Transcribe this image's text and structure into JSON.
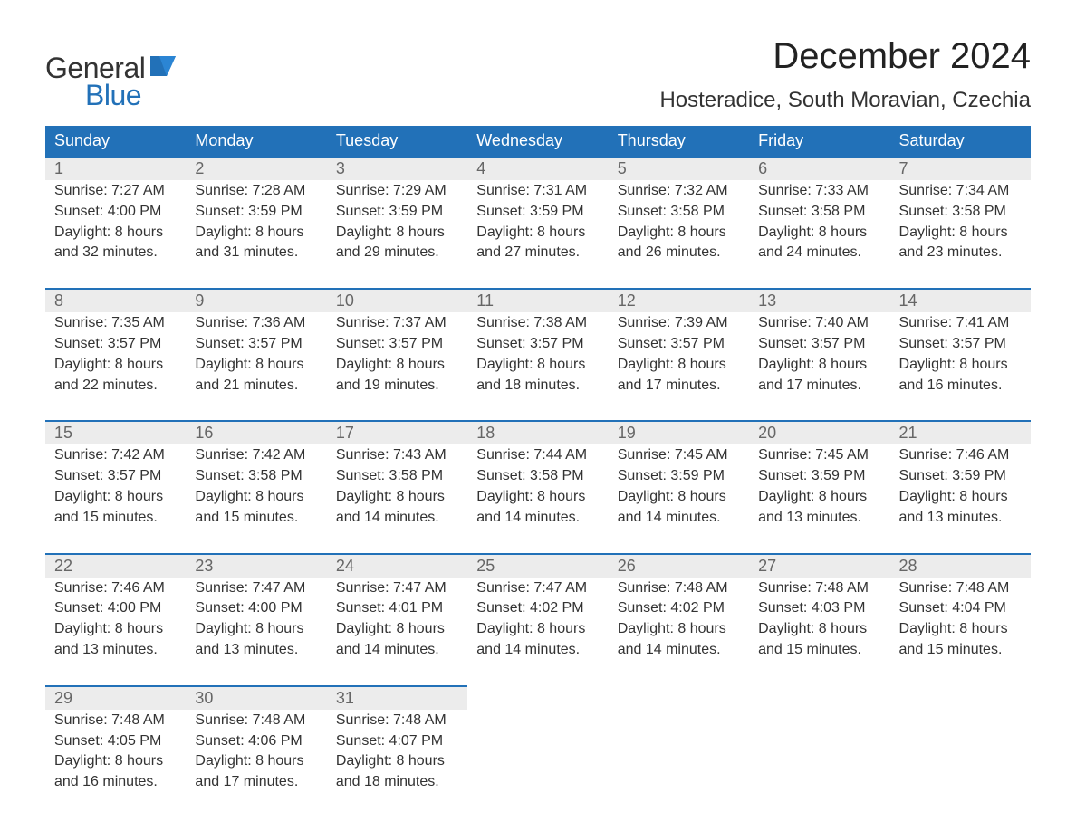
{
  "logo": {
    "line1": "General",
    "line2": "Blue",
    "brand_color": "#2271b8",
    "text_color": "#333333"
  },
  "title": "December 2024",
  "location": "Hosteradice, South Moravian, Czechia",
  "colors": {
    "header_bg": "#2271b8",
    "header_text": "#ffffff",
    "daynum_bg": "#ececec",
    "daynum_border": "#2271b8",
    "daynum_text": "#666666",
    "body_text": "#333333",
    "page_bg": "#ffffff"
  },
  "fonts": {
    "title_size_pt": 30,
    "location_size_pt": 18,
    "header_size_pt": 14,
    "body_size_pt": 12
  },
  "weekday_headers": [
    "Sunday",
    "Monday",
    "Tuesday",
    "Wednesday",
    "Thursday",
    "Friday",
    "Saturday"
  ],
  "line_labels": {
    "sunrise": "Sunrise:",
    "sunset": "Sunset:",
    "daylight": "Daylight:"
  },
  "weeks": [
    [
      {
        "num": "1",
        "sunrise": "7:27 AM",
        "sunset": "4:00 PM",
        "daylight1": "8 hours",
        "daylight2": "and 32 minutes."
      },
      {
        "num": "2",
        "sunrise": "7:28 AM",
        "sunset": "3:59 PM",
        "daylight1": "8 hours",
        "daylight2": "and 31 minutes."
      },
      {
        "num": "3",
        "sunrise": "7:29 AM",
        "sunset": "3:59 PM",
        "daylight1": "8 hours",
        "daylight2": "and 29 minutes."
      },
      {
        "num": "4",
        "sunrise": "7:31 AM",
        "sunset": "3:59 PM",
        "daylight1": "8 hours",
        "daylight2": "and 27 minutes."
      },
      {
        "num": "5",
        "sunrise": "7:32 AM",
        "sunset": "3:58 PM",
        "daylight1": "8 hours",
        "daylight2": "and 26 minutes."
      },
      {
        "num": "6",
        "sunrise": "7:33 AM",
        "sunset": "3:58 PM",
        "daylight1": "8 hours",
        "daylight2": "and 24 minutes."
      },
      {
        "num": "7",
        "sunrise": "7:34 AM",
        "sunset": "3:58 PM",
        "daylight1": "8 hours",
        "daylight2": "and 23 minutes."
      }
    ],
    [
      {
        "num": "8",
        "sunrise": "7:35 AM",
        "sunset": "3:57 PM",
        "daylight1": "8 hours",
        "daylight2": "and 22 minutes."
      },
      {
        "num": "9",
        "sunrise": "7:36 AM",
        "sunset": "3:57 PM",
        "daylight1": "8 hours",
        "daylight2": "and 21 minutes."
      },
      {
        "num": "10",
        "sunrise": "7:37 AM",
        "sunset": "3:57 PM",
        "daylight1": "8 hours",
        "daylight2": "and 19 minutes."
      },
      {
        "num": "11",
        "sunrise": "7:38 AM",
        "sunset": "3:57 PM",
        "daylight1": "8 hours",
        "daylight2": "and 18 minutes."
      },
      {
        "num": "12",
        "sunrise": "7:39 AM",
        "sunset": "3:57 PM",
        "daylight1": "8 hours",
        "daylight2": "and 17 minutes."
      },
      {
        "num": "13",
        "sunrise": "7:40 AM",
        "sunset": "3:57 PM",
        "daylight1": "8 hours",
        "daylight2": "and 17 minutes."
      },
      {
        "num": "14",
        "sunrise": "7:41 AM",
        "sunset": "3:57 PM",
        "daylight1": "8 hours",
        "daylight2": "and 16 minutes."
      }
    ],
    [
      {
        "num": "15",
        "sunrise": "7:42 AM",
        "sunset": "3:57 PM",
        "daylight1": "8 hours",
        "daylight2": "and 15 minutes."
      },
      {
        "num": "16",
        "sunrise": "7:42 AM",
        "sunset": "3:58 PM",
        "daylight1": "8 hours",
        "daylight2": "and 15 minutes."
      },
      {
        "num": "17",
        "sunrise": "7:43 AM",
        "sunset": "3:58 PM",
        "daylight1": "8 hours",
        "daylight2": "and 14 minutes."
      },
      {
        "num": "18",
        "sunrise": "7:44 AM",
        "sunset": "3:58 PM",
        "daylight1": "8 hours",
        "daylight2": "and 14 minutes."
      },
      {
        "num": "19",
        "sunrise": "7:45 AM",
        "sunset": "3:59 PM",
        "daylight1": "8 hours",
        "daylight2": "and 14 minutes."
      },
      {
        "num": "20",
        "sunrise": "7:45 AM",
        "sunset": "3:59 PM",
        "daylight1": "8 hours",
        "daylight2": "and 13 minutes."
      },
      {
        "num": "21",
        "sunrise": "7:46 AM",
        "sunset": "3:59 PM",
        "daylight1": "8 hours",
        "daylight2": "and 13 minutes."
      }
    ],
    [
      {
        "num": "22",
        "sunrise": "7:46 AM",
        "sunset": "4:00 PM",
        "daylight1": "8 hours",
        "daylight2": "and 13 minutes."
      },
      {
        "num": "23",
        "sunrise": "7:47 AM",
        "sunset": "4:00 PM",
        "daylight1": "8 hours",
        "daylight2": "and 13 minutes."
      },
      {
        "num": "24",
        "sunrise": "7:47 AM",
        "sunset": "4:01 PM",
        "daylight1": "8 hours",
        "daylight2": "and 14 minutes."
      },
      {
        "num": "25",
        "sunrise": "7:47 AM",
        "sunset": "4:02 PM",
        "daylight1": "8 hours",
        "daylight2": "and 14 minutes."
      },
      {
        "num": "26",
        "sunrise": "7:48 AM",
        "sunset": "4:02 PM",
        "daylight1": "8 hours",
        "daylight2": "and 14 minutes."
      },
      {
        "num": "27",
        "sunrise": "7:48 AM",
        "sunset": "4:03 PM",
        "daylight1": "8 hours",
        "daylight2": "and 15 minutes."
      },
      {
        "num": "28",
        "sunrise": "7:48 AM",
        "sunset": "4:04 PM",
        "daylight1": "8 hours",
        "daylight2": "and 15 minutes."
      }
    ],
    [
      {
        "num": "29",
        "sunrise": "7:48 AM",
        "sunset": "4:05 PM",
        "daylight1": "8 hours",
        "daylight2": "and 16 minutes."
      },
      {
        "num": "30",
        "sunrise": "7:48 AM",
        "sunset": "4:06 PM",
        "daylight1": "8 hours",
        "daylight2": "and 17 minutes."
      },
      {
        "num": "31",
        "sunrise": "7:48 AM",
        "sunset": "4:07 PM",
        "daylight1": "8 hours",
        "daylight2": "and 18 minutes."
      },
      null,
      null,
      null,
      null
    ]
  ]
}
